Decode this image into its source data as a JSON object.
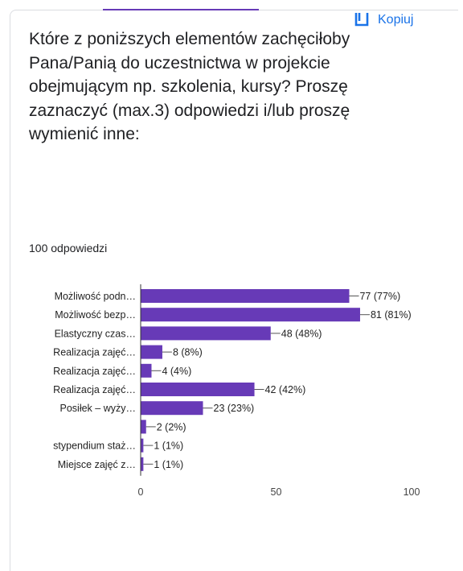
{
  "header": {
    "copy_label": "Kopiuj",
    "copy_icon": "copy-icon"
  },
  "question": {
    "text": "Które z poniższych elementów zachęciłoby Pana/Panią do uczestnictwa w projekcie obejmującym np. szkolenia, kursy? Proszę zaznaczyć (max.3) odpowiedzi i/lub proszę wymienić inne:"
  },
  "responses": {
    "count_label": "100 odpowiedzi"
  },
  "colors": {
    "bar": "#673ab7",
    "accent": "#673ab7",
    "link": "#1a73e8"
  },
  "chart_data": {
    "type": "bar",
    "orientation": "horizontal",
    "categories": [
      "Możliwość podn…",
      "Możliwość bezp…",
      "Elastyczny czas…",
      "Realizacja zajęć…",
      "Realizacja zajęć…",
      "Realizacja zajęć…",
      "Posiłek – wyży…",
      "",
      "stypendium staż…",
      "Miejsce zajęć z…"
    ],
    "values": [
      77,
      81,
      48,
      8,
      4,
      42,
      23,
      2,
      1,
      1
    ],
    "value_labels": [
      "77 (77%)",
      "81 (81%)",
      "48 (48%)",
      "8 (8%)",
      "4 (4%)",
      "42 (42%)",
      "23 (23%)",
      "2 (2%)",
      "1 (1%)",
      "1 (1%)"
    ],
    "xlim": [
      0,
      100
    ],
    "xticks": [
      "0",
      "50",
      "100"
    ],
    "grid": false
  }
}
